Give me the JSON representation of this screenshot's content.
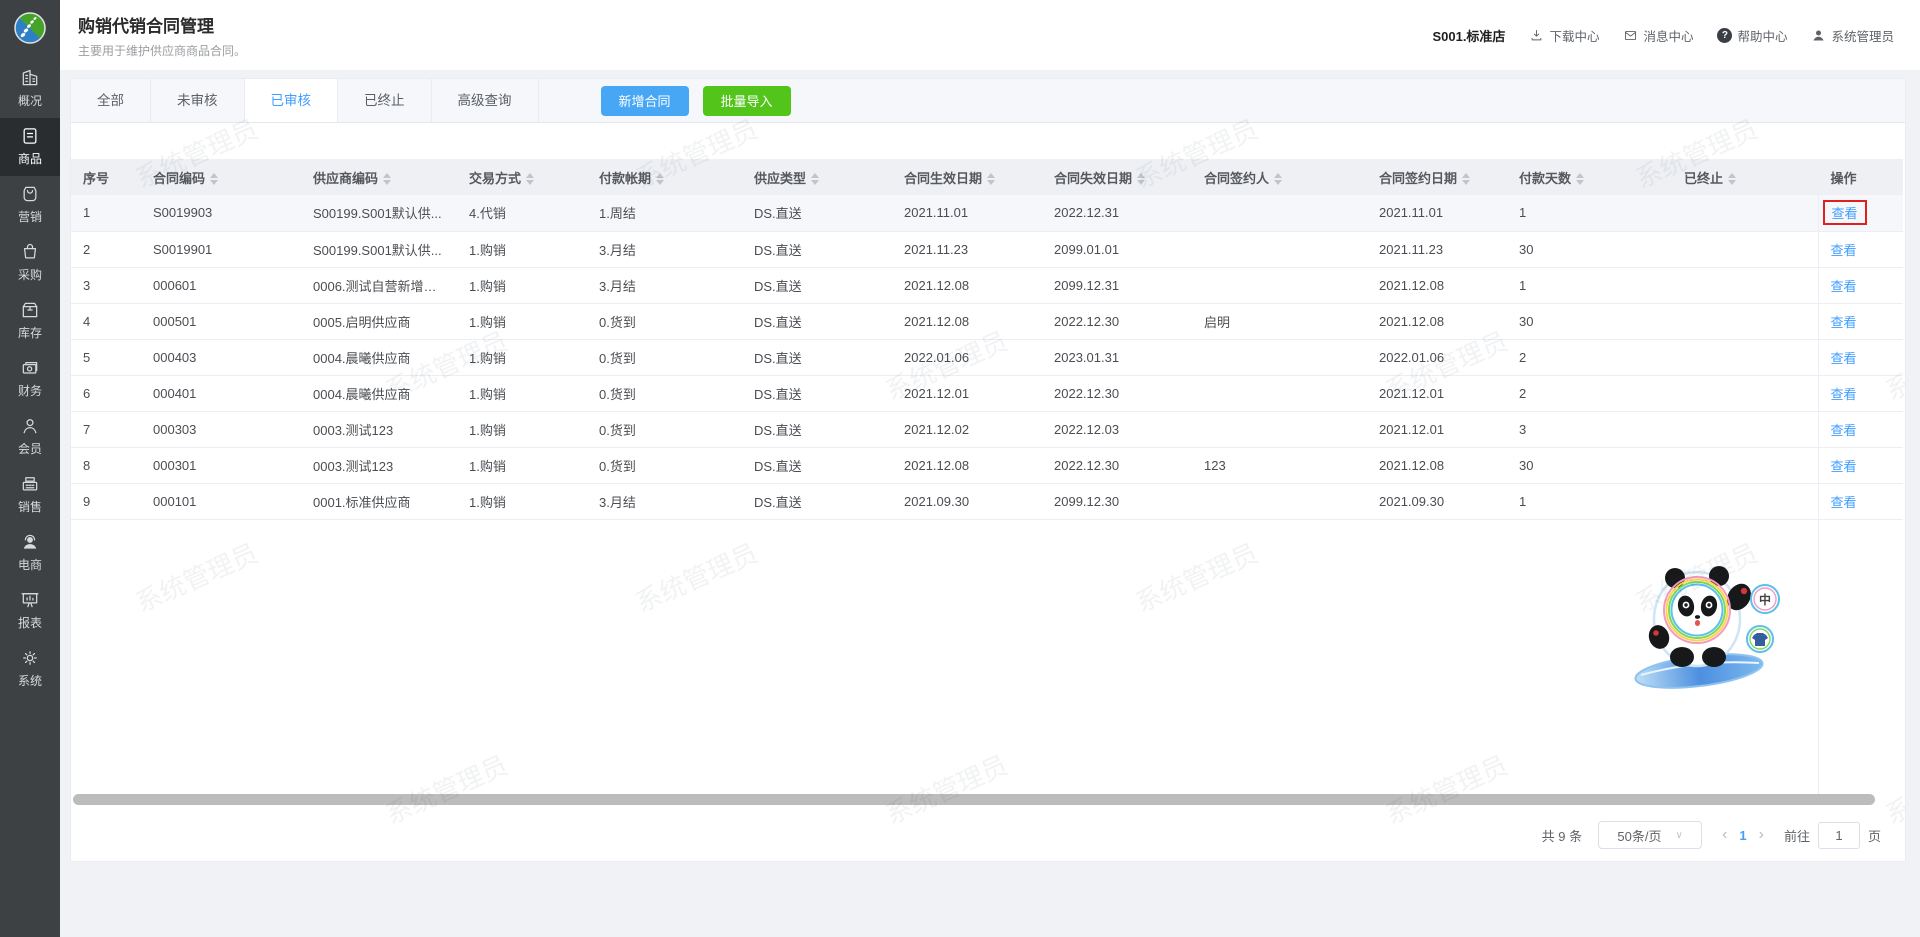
{
  "page": {
    "title": "购销代销合同管理",
    "subtitle": "主要用于维护供应商商品合同。"
  },
  "topbar": {
    "store": "S001.标准店",
    "links": [
      {
        "icon": "download-icon",
        "label": "下载中心"
      },
      {
        "icon": "message-icon",
        "label": "消息中心"
      },
      {
        "icon": "help-icon",
        "label": "帮助中心"
      },
      {
        "icon": "user-icon",
        "label": "系统管理员"
      }
    ]
  },
  "sidebar": {
    "items": [
      {
        "icon": "overview-icon",
        "label": "概况",
        "active": false
      },
      {
        "icon": "goods-icon",
        "label": "商品",
        "active": true
      },
      {
        "icon": "marketing-icon",
        "label": "营销",
        "active": false
      },
      {
        "icon": "purchase-icon",
        "label": "采购",
        "active": false
      },
      {
        "icon": "inventory-icon",
        "label": "库存",
        "active": false
      },
      {
        "icon": "finance-icon",
        "label": "财务",
        "active": false
      },
      {
        "icon": "member-icon",
        "label": "会员",
        "active": false
      },
      {
        "icon": "sales-icon",
        "label": "销售",
        "active": false
      },
      {
        "icon": "ecommerce-icon",
        "label": "电商",
        "active": false
      },
      {
        "icon": "report-icon",
        "label": "报表",
        "active": false
      },
      {
        "icon": "system-icon",
        "label": "系统",
        "active": false
      }
    ]
  },
  "tabs": [
    {
      "label": "全部",
      "active": false
    },
    {
      "label": "未审核",
      "active": false
    },
    {
      "label": "已审核",
      "active": true
    },
    {
      "label": "已终止",
      "active": false
    },
    {
      "label": "高级查询",
      "active": false
    }
  ],
  "toolbar": {
    "add_label": "新增合同",
    "import_label": "批量导入"
  },
  "table": {
    "columns": [
      {
        "label": "序号",
        "sortable": false
      },
      {
        "label": "合同编码",
        "sortable": true
      },
      {
        "label": "供应商编码",
        "sortable": true
      },
      {
        "label": "交易方式",
        "sortable": true
      },
      {
        "label": "付款帐期",
        "sortable": true
      },
      {
        "label": "供应类型",
        "sortable": true
      },
      {
        "label": "合同生效日期",
        "sortable": true
      },
      {
        "label": "合同失效日期",
        "sortable": true
      },
      {
        "label": "合同签约人",
        "sortable": true
      },
      {
        "label": "合同签约日期",
        "sortable": true
      },
      {
        "label": "付款天数",
        "sortable": true
      },
      {
        "label": "已终止",
        "sortable": true
      },
      {
        "label": "操作",
        "sortable": false
      }
    ],
    "action_label": "查看",
    "highlighted_row": 0,
    "rows": [
      [
        "1",
        "S0019903",
        "S00199.S001默认供...",
        "4.代销",
        "1.周结",
        "DS.直送",
        "2021.11.01",
        "2022.12.31",
        "",
        "2021.11.01",
        "1",
        ""
      ],
      [
        "2",
        "S0019901",
        "S00199.S001默认供...",
        "1.购销",
        "3.月结",
        "DS.直送",
        "2021.11.23",
        "2099.01.01",
        "",
        "2021.11.23",
        "30",
        ""
      ],
      [
        "3",
        "000601",
        "0006.测试自营新增供...",
        "1.购销",
        "3.月结",
        "DS.直送",
        "2021.12.08",
        "2099.12.31",
        "",
        "2021.12.08",
        "1",
        ""
      ],
      [
        "4",
        "000501",
        "0005.启明供应商",
        "1.购销",
        "0.货到",
        "DS.直送",
        "2021.12.08",
        "2022.12.30",
        "启明",
        "2021.12.08",
        "30",
        ""
      ],
      [
        "5",
        "000403",
        "0004.晨曦供应商",
        "1.购销",
        "0.货到",
        "DS.直送",
        "2022.01.06",
        "2023.01.31",
        "",
        "2022.01.06",
        "2",
        ""
      ],
      [
        "6",
        "000401",
        "0004.晨曦供应商",
        "1.购销",
        "0.货到",
        "DS.直送",
        "2021.12.01",
        "2022.12.30",
        "",
        "2021.12.01",
        "2",
        ""
      ],
      [
        "7",
        "000303",
        "0003.测试123",
        "1.购销",
        "0.货到",
        "DS.直送",
        "2021.12.02",
        "2022.12.03",
        "",
        "2021.12.01",
        "3",
        ""
      ],
      [
        "8",
        "000301",
        "0003.测试123",
        "1.购销",
        "0.货到",
        "DS.直送",
        "2021.12.08",
        "2022.12.30",
        "123",
        "2021.12.08",
        "30",
        ""
      ],
      [
        "9",
        "000101",
        "0001.标准供应商",
        "1.购销",
        "3.月结",
        "DS.直送",
        "2021.09.30",
        "2099.12.30",
        "",
        "2021.09.30",
        "1",
        ""
      ]
    ]
  },
  "pagination": {
    "total": "共 9 条",
    "page_size": "50条/页",
    "prev": "‹",
    "next": "›",
    "current_page": "1",
    "goto_label": "前往",
    "goto_value": "1",
    "page_unit": "页"
  },
  "watermark": {
    "text": "系统管理员"
  },
  "mascot": {
    "badge_text": "中"
  },
  "colors": {
    "accent_blue": "#409eff",
    "button_blue": "#47a7f5",
    "button_green": "#52c41a",
    "highlight_red": "#e02020",
    "sidebar_bg": "#3d4144",
    "header_bg": "#eef0f4"
  }
}
